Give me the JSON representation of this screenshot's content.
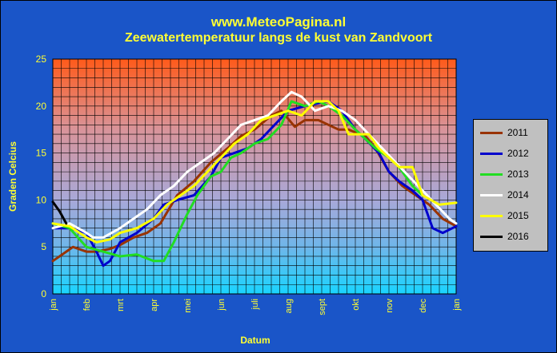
{
  "header": {
    "site": "www.MeteoPagina.nl",
    "title": "Zeewatertemperatuur langs de kust van Zandvoort"
  },
  "chart_data": {
    "type": "line",
    "title": "Zeewatertemperatuur langs de kust van Zandvoort",
    "xlabel": "Datum",
    "ylabel": "Graden Celcius",
    "ylim": [
      0,
      25
    ],
    "yticks": [
      "0",
      "5",
      "10",
      "15",
      "20",
      "25"
    ],
    "xticks": [
      "jan",
      "feb",
      "mrt",
      "apr",
      "mei",
      "jun",
      "juli",
      "aug",
      "sept",
      "okt",
      "nov",
      "dec",
      "jan"
    ],
    "grid": true,
    "legend": "right",
    "x_unit": "month (0 = jan, 12 = jan)",
    "series": [
      {
        "name": "2011",
        "color": "#993300",
        "x": [
          0,
          0.4,
          0.6,
          1.0,
          1.3,
          1.7,
          2.0,
          2.4,
          2.8,
          3.2,
          3.7,
          4.2,
          4.7,
          5.2,
          5.6,
          6.0,
          6.5,
          6.8,
          7.2,
          7.5,
          7.9,
          8.2,
          8.5,
          8.8,
          9.0,
          9.3,
          9.6,
          10.0,
          10.4,
          10.8,
          11.2,
          11.6,
          12.0
        ],
        "y": [
          3.5,
          4.5,
          5.0,
          4.5,
          4.5,
          4.8,
          5.2,
          6.0,
          6.5,
          7.5,
          10.5,
          12.0,
          14.0,
          15.5,
          16.8,
          17.5,
          19.0,
          19.5,
          17.8,
          18.5,
          18.5,
          18.0,
          17.5,
          17.5,
          17.2,
          16.8,
          15.5,
          13.0,
          11.5,
          10.5,
          9.5,
          8.0,
          7.2
        ]
      },
      {
        "name": "2012",
        "color": "#0000cc",
        "x": [
          0,
          0.5,
          1.0,
          1.3,
          1.5,
          1.7,
          2.0,
          2.5,
          3.0,
          3.3,
          3.7,
          4.2,
          4.7,
          5.0,
          5.4,
          5.8,
          6.2,
          6.6,
          7.0,
          7.5,
          7.9,
          8.2,
          8.6,
          9.0,
          9.3,
          9.7,
          10.0,
          10.3,
          10.7,
          11.0,
          11.3,
          11.6,
          12.0
        ],
        "y": [
          7.0,
          7.0,
          6.5,
          4.5,
          3.0,
          3.5,
          5.5,
          6.5,
          8.0,
          9.5,
          10.0,
          10.5,
          12.5,
          14.5,
          15.0,
          15.5,
          16.5,
          18.0,
          19.5,
          20.0,
          20.3,
          20.5,
          19.5,
          17.5,
          16.5,
          15.0,
          13.0,
          12.0,
          11.0,
          10.0,
          7.0,
          6.5,
          7.2
        ]
      },
      {
        "name": "2013",
        "color": "#22dd22",
        "x": [
          0,
          0.5,
          1.0,
          1.5,
          2.0,
          2.5,
          3.0,
          3.3,
          3.6,
          4.0,
          4.3,
          4.7,
          5.0,
          5.3,
          5.6,
          6.0,
          6.4,
          6.8,
          7.1,
          7.5,
          7.9,
          8.2,
          8.6,
          9.0,
          9.3,
          9.6,
          10.0,
          10.3,
          10.7,
          11.0
        ],
        "y": [
          7.5,
          7.0,
          5.0,
          4.5,
          4.0,
          4.2,
          3.5,
          3.5,
          5.5,
          8.5,
          10.5,
          12.5,
          13.0,
          14.5,
          15.0,
          16.0,
          16.5,
          18.0,
          20.5,
          20.0,
          20.5,
          20.0,
          19.0,
          17.5,
          16.5,
          15.5,
          14.5,
          13.5,
          11.5,
          10.5
        ]
      },
      {
        "name": "2014",
        "color": "#ffffff",
        "x": [
          0,
          0.5,
          1.0,
          1.2,
          1.5,
          2.0,
          2.4,
          2.8,
          3.2,
          3.6,
          4.0,
          4.4,
          4.8,
          5.2,
          5.6,
          6.0,
          6.4,
          6.8,
          7.1,
          7.4,
          7.8,
          8.2,
          8.6,
          9.0,
          9.4,
          9.8,
          10.2,
          10.6,
          11.0,
          11.4,
          11.8,
          12.0
        ],
        "y": [
          7.0,
          7.5,
          6.5,
          6.0,
          6.0,
          7.0,
          8.0,
          9.0,
          10.5,
          11.5,
          13.0,
          14.0,
          15.0,
          16.5,
          18.0,
          18.5,
          19.0,
          20.5,
          21.5,
          21.0,
          19.5,
          20.0,
          19.5,
          18.5,
          17.0,
          15.5,
          14.0,
          12.5,
          11.0,
          9.5,
          8.0,
          7.5
        ]
      },
      {
        "name": "2015",
        "color": "#ffff00",
        "x": [
          0,
          0.5,
          1.0,
          1.3,
          1.7,
          2.0,
          2.5,
          3.0,
          3.4,
          3.8,
          4.2,
          4.6,
          5.0,
          5.4,
          5.8,
          6.2,
          6.6,
          7.0,
          7.4,
          7.8,
          8.2,
          8.5,
          8.8,
          9.1,
          9.4,
          9.7,
          10.0,
          10.3,
          10.7,
          11.0,
          11.5,
          12.0
        ],
        "y": [
          7.5,
          7.2,
          6.0,
          5.5,
          5.8,
          6.5,
          7.0,
          8.0,
          9.5,
          10.5,
          11.5,
          13.0,
          14.5,
          16.0,
          17.0,
          18.5,
          19.0,
          19.5,
          19.0,
          20.5,
          20.5,
          19.5,
          17.0,
          17.0,
          17.0,
          15.5,
          14.5,
          13.5,
          13.5,
          10.5,
          9.5,
          9.7
        ]
      },
      {
        "name": "2016",
        "color": "#000000",
        "x": [
          0,
          0.2,
          0.4
        ],
        "y": [
          9.8,
          8.8,
          7.5
        ]
      }
    ]
  }
}
